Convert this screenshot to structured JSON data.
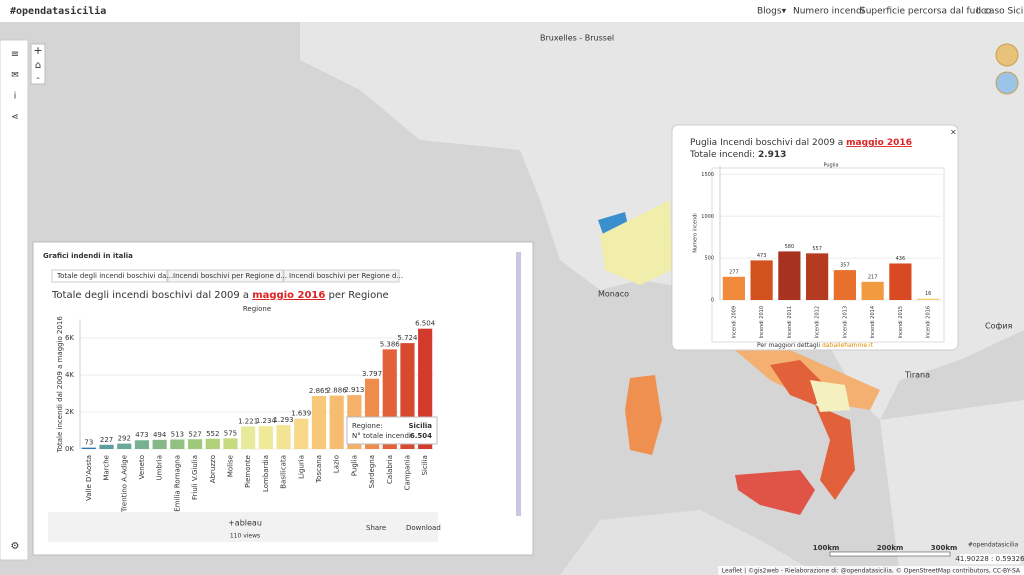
{
  "navbar": {
    "brand": "#opendatasicilia",
    "links": [
      "Blogs▾",
      "Numero incendi",
      "Superficie percorsa dal fuoco",
      "Il caso Sicilia"
    ]
  },
  "map": {
    "labels": [
      "Bruxelles - Brussel",
      "Monaco",
      "Tirana",
      "София"
    ],
    "scale": [
      "100km",
      "200km",
      "300km"
    ],
    "coords": "41.90228 : 0.59326",
    "attribution": "Leaflet | ©gis2web - Rielaborazione di: @opendatasicilia, © OpenStreetMap contributors, CC-BY-SA",
    "logo": "#opendatasicilia"
  },
  "panel": {
    "title": "Grafici indendi in italia",
    "tabs": [
      "Totale degli incendi boschivi da...",
      "Incendi boschivi per Regione d...",
      "Incendi boschivi per Regione d..."
    ],
    "footer": {
      "brand": "+ableau",
      "views": "110 views",
      "share": "Share",
      "download": "Download"
    },
    "tooltip": {
      "region_label": "Regione:",
      "region": "Sicilia",
      "count_label": "N° totale incendi:",
      "count": "6.504"
    }
  },
  "popup": {
    "total_label": "Totale incendi:",
    "total": "2.913",
    "footer": "Per maggiori dettagli",
    "link": "datiallefiamme.it"
  },
  "chart_data": [
    {
      "type": "bar",
      "title": [
        "Totale degli incendi boschivi dal 2009 a ",
        "maggio 2016",
        " per Regione"
      ],
      "subtitle": "Regione",
      "y_label": "Totale incendi dal 2009 a maggio 2016",
      "categories": [
        "Valle D'Aosta",
        "Marche",
        "Trentino A.Adige",
        "Veneto",
        "Umbria",
        "Emilia Romagna",
        "Friuli V.Giulia",
        "Abruzzo",
        "Molise",
        "Piemonte",
        "Lombardia",
        "Basilicata",
        "Liguria",
        "Toscana",
        "Lazio",
        "Puglia",
        "Sardegna",
        "Calabria",
        "Campania",
        "Sicilia"
      ],
      "values": [
        73,
        227,
        292,
        473,
        494,
        513,
        527,
        552,
        575,
        1221,
        1234,
        1293,
        1639,
        2865,
        2886,
        2913,
        3797,
        5386,
        5724,
        6504
      ],
      "value_labels": [
        "73",
        "227",
        "292",
        "473",
        "494",
        "513",
        "527",
        "552",
        "575",
        "1.221",
        "1.234",
        "1.293",
        "1.639",
        "2.865",
        "2.886",
        "2.913",
        "3.797",
        "5.386",
        "5.724",
        "6.504"
      ],
      "colors": [
        "#2e78b5",
        "#5a9ea0",
        "#6aa89a",
        "#78b090",
        "#84b889",
        "#92c080",
        "#a0c87a",
        "#b2d07a",
        "#c6da80",
        "#e6ea9a",
        "#eeea98",
        "#f2e494",
        "#f6d888",
        "#f8c878",
        "#f7bc70",
        "#f5b06a",
        "#ef8c4c",
        "#e2603a",
        "#d84a30",
        "#d23a2c"
      ],
      "ylim": [
        0,
        7000
      ],
      "yticks": [
        {
          "value": 0,
          "label": "0K"
        },
        {
          "value": 2000,
          "label": "2K"
        },
        {
          "value": 4000,
          "label": "4K"
        },
        {
          "value": 6000,
          "label": "6K"
        }
      ],
      "grid": true
    },
    {
      "type": "bar",
      "title": [
        "Puglia Incendi boschivi dal 2009 a ",
        "maggio 2016"
      ],
      "subtitle": "Puglia",
      "y_label": "Numero incendi",
      "categories": [
        "Incendi 2009",
        "Incendi 2010",
        "Incendi 2011",
        "Incendi 2012",
        "Incendi 2013",
        "Incendi 2014",
        "Incendi 2015",
        "Incendi 2016"
      ],
      "values": [
        277,
        473,
        580,
        557,
        357,
        217,
        436,
        16
      ],
      "colors": [
        "#f08a3a",
        "#d2521e",
        "#a83220",
        "#b43a20",
        "#e8702c",
        "#f29a40",
        "#d84a22",
        "#f5d070"
      ],
      "ylim": [
        0,
        1600
      ],
      "yticks": [
        0,
        500,
        1000,
        1500
      ],
      "grid": true
    }
  ]
}
